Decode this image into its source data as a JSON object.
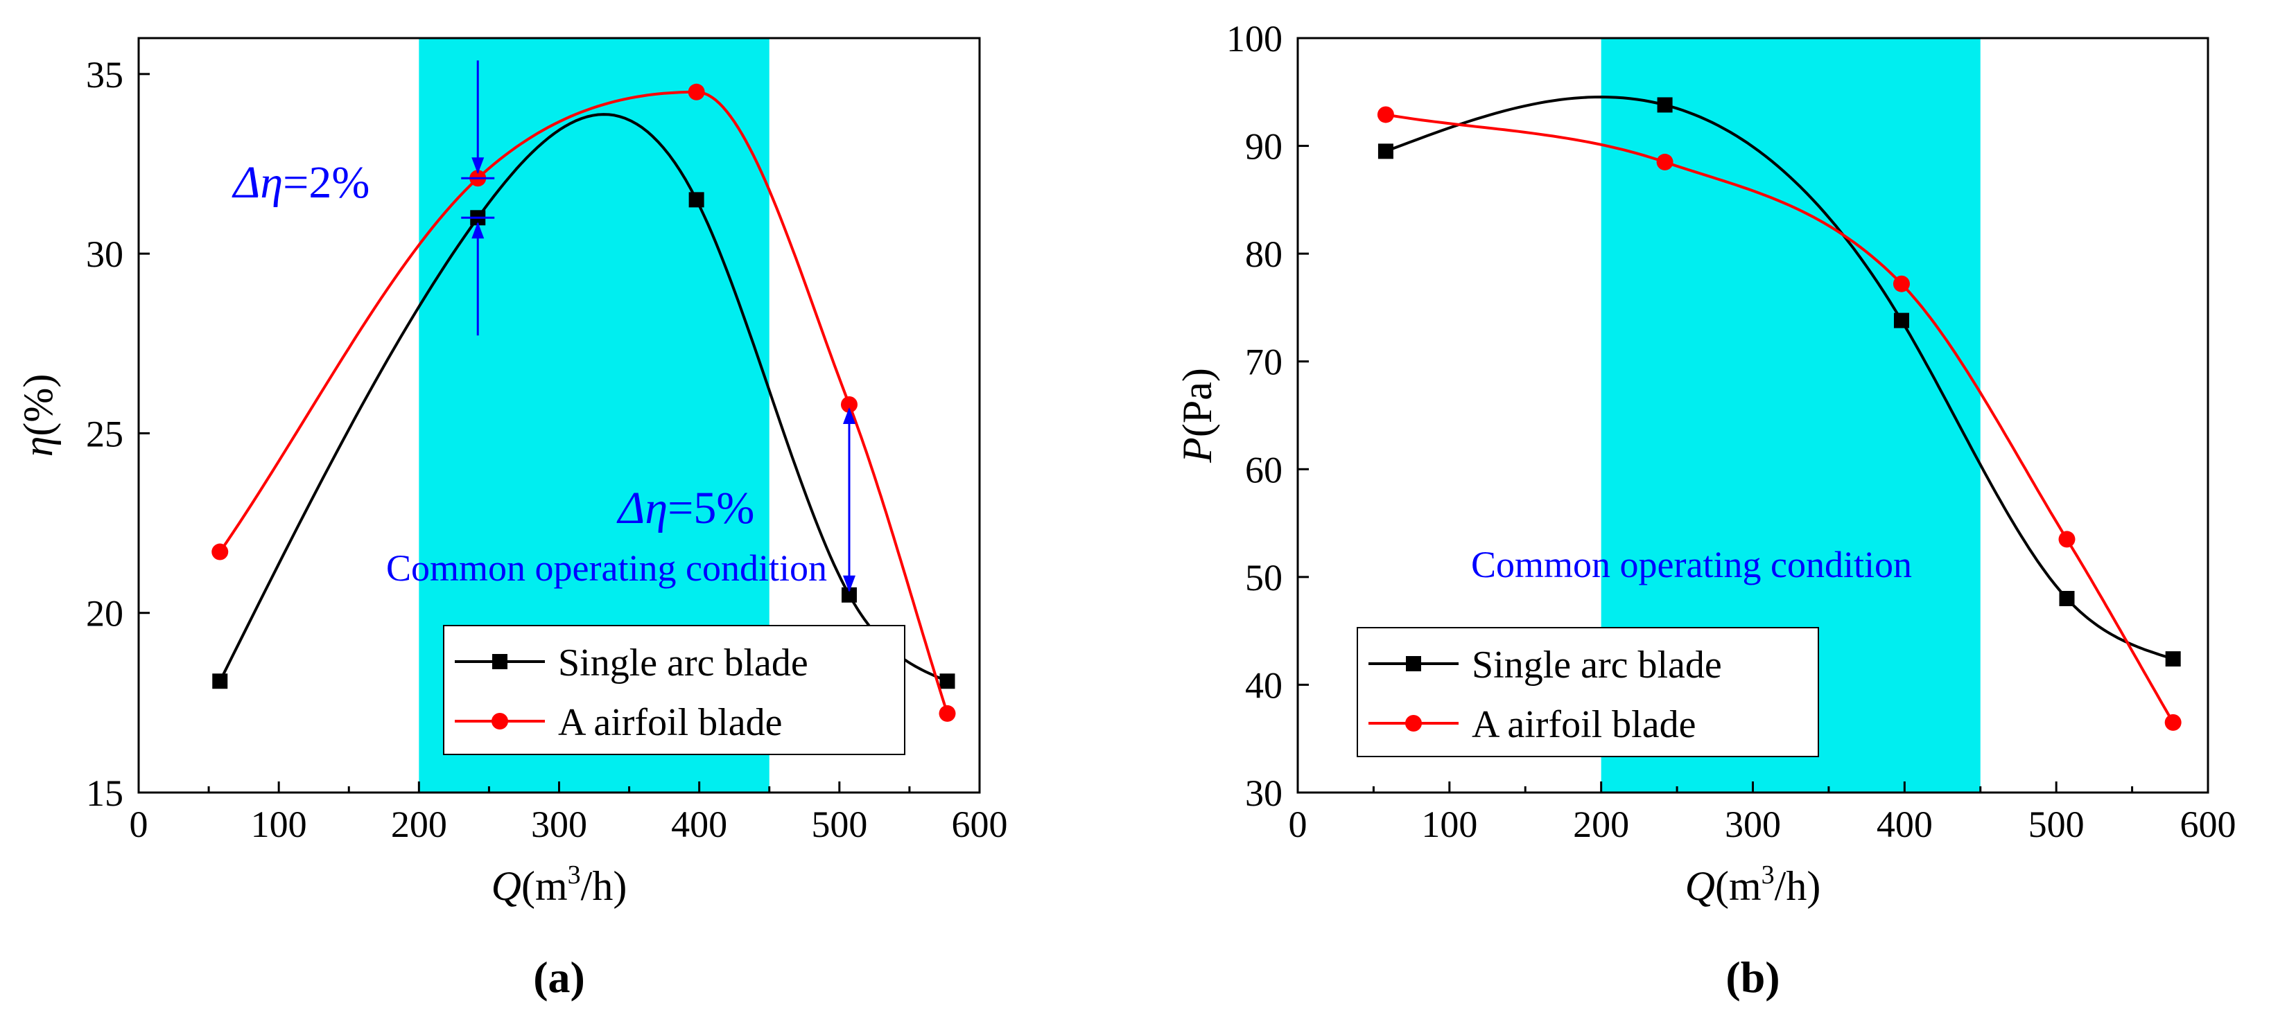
{
  "colors": {
    "single_arc": "#000000",
    "airfoil": "#ff0000",
    "highlight": "#00eef0",
    "annotation": "#0000ff",
    "axis": "#000000",
    "background": "#ffffff"
  },
  "chart_data": [
    {
      "panel_label": "(a)",
      "type": "line",
      "ylabel_symbol": "η",
      "ylabel_unit": "(%)",
      "xlabel_symbol": "Q",
      "xlabel_unit_prefix": "(m",
      "xlabel_unit_sup": "3",
      "xlabel_unit_suffix": "/h)",
      "xlim": [
        0,
        600
      ],
      "ylim": [
        15,
        36
      ],
      "xticks": [
        0,
        100,
        200,
        300,
        400,
        500,
        600
      ],
      "yticks": [
        15,
        20,
        25,
        30,
        35
      ],
      "grid": false,
      "shaded_region": {
        "x_from": 200,
        "x_to": 450,
        "label": "Common operating condition"
      },
      "legend_position": "bottom-right",
      "series": [
        {
          "name": "Single arc blade",
          "marker": "square",
          "color": "#000000",
          "x": [
            58,
            242,
            398,
            507,
            577
          ],
          "y": [
            18.1,
            31.0,
            31.5,
            20.5,
            18.1
          ]
        },
        {
          "name": "A airfoil blade",
          "marker": "circle",
          "color": "#ff0000",
          "x": [
            58,
            242,
            398,
            507,
            577
          ],
          "y": [
            21.7,
            32.1,
            34.5,
            25.8,
            17.2
          ]
        }
      ],
      "annotations": [
        {
          "text_symbol": "Δη",
          "text_value": "=2%",
          "at_x": 242,
          "between_y": [
            31.0,
            32.1
          ]
        },
        {
          "text_symbol": "Δη",
          "text_value": "=5%",
          "at_x": 507,
          "between_y": [
            20.5,
            25.8
          ]
        }
      ]
    },
    {
      "panel_label": "(b)",
      "type": "line",
      "ylabel_symbol": "P",
      "ylabel_unit": "(Pa)",
      "xlabel_symbol": "Q",
      "xlabel_unit_prefix": "(m",
      "xlabel_unit_sup": "3",
      "xlabel_unit_suffix": "/h)",
      "xlim": [
        0,
        600
      ],
      "ylim": [
        30,
        100
      ],
      "xticks": [
        0,
        100,
        200,
        300,
        400,
        500,
        600
      ],
      "yticks": [
        30,
        40,
        50,
        60,
        70,
        80,
        90,
        100
      ],
      "grid": false,
      "shaded_region": {
        "x_from": 200,
        "x_to": 450,
        "label": "Common operating condition"
      },
      "legend_position": "bottom-left",
      "series": [
        {
          "name": "Single arc blade",
          "marker": "square",
          "color": "#000000",
          "x": [
            58,
            242,
            398,
            507,
            577
          ],
          "y": [
            89.5,
            93.8,
            73.8,
            48.0,
            42.4
          ]
        },
        {
          "name": "A airfoil blade",
          "marker": "circle",
          "color": "#ff0000",
          "x": [
            58,
            242,
            398,
            507,
            577
          ],
          "y": [
            92.9,
            88.5,
            77.2,
            53.5,
            36.5
          ]
        }
      ],
      "annotations": []
    }
  ]
}
